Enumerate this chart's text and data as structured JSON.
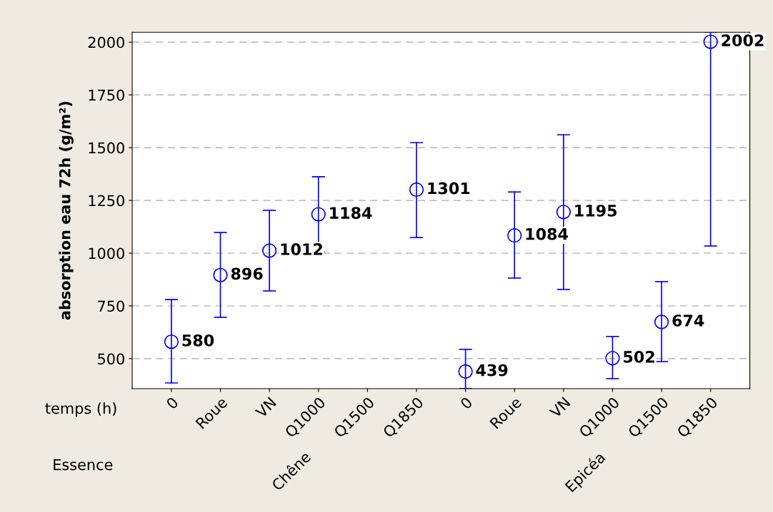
{
  "chart_data": {
    "type": "scatter",
    "ylabel": "absorption eau 72h (g/m²)",
    "categories": [
      "0",
      "Roue",
      "VN",
      "Q1000",
      "Q1500",
      "Q1850",
      "0",
      "Roue",
      "VN",
      "Q1000",
      "Q1500",
      "Q1850"
    ],
    "series": [
      {
        "color": "#0000ff",
        "values": [
          580,
          896,
          1012,
          1184,
          null,
          1301,
          439,
          1084,
          1195,
          502,
          674,
          2002
        ],
        "errors": [
          [
            385,
            780
          ],
          [
            696,
            1098
          ],
          [
            821,
            1203
          ],
          [
            1005,
            1362
          ],
          null,
          [
            1074,
            1524
          ],
          [
            358,
            544
          ],
          [
            882,
            1290
          ],
          [
            828,
            1561
          ],
          [
            405,
            605
          ],
          [
            486,
            865
          ],
          [
            1034,
            2047
          ]
        ]
      }
    ],
    "annotations": [
      "temps (h)",
      "Essence",
      "Chêne",
      "Epicéa"
    ],
    "ylim": [
      358,
      2047
    ],
    "yticks": [
      500,
      750,
      1000,
      1250,
      1500,
      1750,
      2000
    ],
    "grid": "y",
    "marker": "circle",
    "data_labels": true
  }
}
